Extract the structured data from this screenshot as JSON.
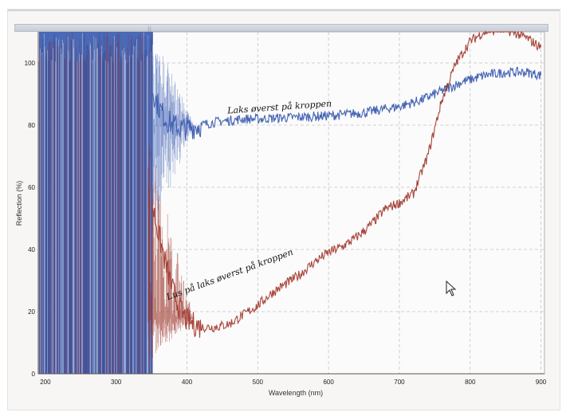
{
  "chart_data": {
    "type": "line",
    "xlabel": "Wavelength (nm)",
    "ylabel": "Reflection (%)",
    "xlim": [
      190,
      905
    ],
    "ylim": [
      0,
      110
    ],
    "x_ticks": [
      200,
      300,
      400,
      500,
      600,
      700,
      800,
      900
    ],
    "y_ticks": [
      0,
      20,
      40,
      60,
      80,
      100
    ],
    "grid": true,
    "legend": "none",
    "series": [
      {
        "color": "#3b5cb0",
        "x": [
          350,
          360,
          370,
          380,
          390,
          400,
          420,
          440,
          460,
          480,
          500,
          550,
          600,
          650,
          700,
          730,
          760,
          790,
          820,
          850,
          880,
          900
        ],
        "y": [
          92,
          86,
          82,
          80,
          79,
          79,
          80,
          81,
          81.5,
          82,
          82,
          82.5,
          83,
          84,
          86,
          88,
          91,
          94,
          96,
          97,
          97,
          96
        ]
      },
      {
        "color": "#a33a2f",
        "x": [
          350,
          360,
          370,
          380,
          390,
          400,
          420,
          440,
          460,
          480,
          500,
          520,
          540,
          560,
          580,
          600,
          620,
          640,
          660,
          680,
          700,
          720,
          740,
          760,
          780,
          800,
          820,
          840,
          860,
          880,
          900
        ],
        "y": [
          55,
          45,
          35,
          27,
          21,
          17,
          15,
          15,
          16,
          19,
          22,
          26,
          29,
          32,
          36,
          39,
          41,
          44,
          48,
          53,
          55,
          58,
          70,
          88,
          100,
          107,
          110,
          111,
          110,
          108,
          105
        ]
      }
    ],
    "annotations": [
      {
        "text": "Laks øverst på kroppen",
        "x": 525,
        "y": 85
      },
      {
        "text": "Lus på laks øverst på kroppen",
        "x": 480,
        "y": 25
      }
    ]
  }
}
